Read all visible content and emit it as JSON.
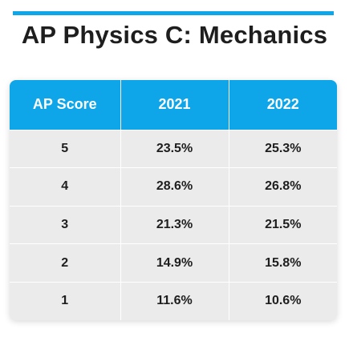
{
  "title": "AP Physics C: Mechanics",
  "accent_color": "#0ea5e9",
  "table": {
    "headers": [
      "AP Score",
      "2021",
      "2022"
    ],
    "rows": [
      [
        "5",
        "23.5%",
        "25.3%"
      ],
      [
        "4",
        "28.6%",
        "26.8%"
      ],
      [
        "3",
        "21.3%",
        "21.5%"
      ],
      [
        "2",
        "14.9%",
        "15.8%"
      ],
      [
        "1",
        "11.6%",
        "10.6%"
      ]
    ]
  }
}
